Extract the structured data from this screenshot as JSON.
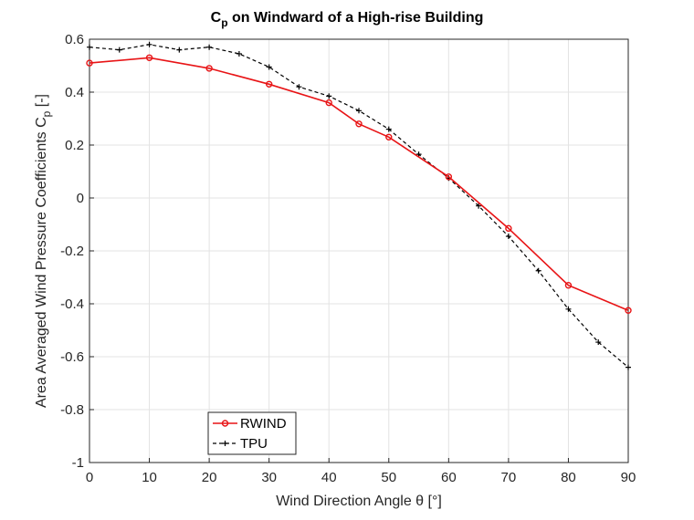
{
  "chart_data": {
    "type": "line",
    "title": "C",
    "title_sub": "p",
    "title_rest": " on Windward of a High-rise Building",
    "xlabel": "Wind Direction Angle θ [°]",
    "ylabel": "Area Averaged Wind Pressure Coefficients C",
    "ylabel_sub": "p",
    "ylabel_rest": " [-]",
    "xlim": [
      0,
      90
    ],
    "ylim": [
      -1,
      0.6
    ],
    "xticks": [
      0,
      10,
      20,
      30,
      40,
      50,
      60,
      70,
      80,
      90
    ],
    "xtick_labels": [
      "0",
      "10",
      "20",
      "30",
      "40",
      "50",
      "60",
      "70",
      "80",
      "90"
    ],
    "yticks": [
      -1,
      -0.8,
      -0.6,
      -0.4,
      -0.2,
      0,
      0.2,
      0.4,
      0.6
    ],
    "ytick_labels": [
      "-1",
      "-0.8",
      "-0.6",
      "-0.4",
      "-0.2",
      "0",
      "0.2",
      "0.4",
      "0.6"
    ],
    "grid": true,
    "legend_position": "bottom-left",
    "series": [
      {
        "name": "RWIND",
        "color": "#e81416",
        "style": "solid",
        "marker": "circle",
        "x": [
          0,
          10,
          20,
          30,
          40,
          45,
          50,
          60,
          70,
          80,
          90
        ],
        "y": [
          0.51,
          0.53,
          0.49,
          0.43,
          0.36,
          0.28,
          0.23,
          0.08,
          -0.115,
          -0.33,
          -0.425
        ]
      },
      {
        "name": "TPU",
        "color": "#000000",
        "style": "dashed",
        "marker": "plus",
        "x": [
          0,
          5,
          10,
          15,
          20,
          25,
          30,
          35,
          40,
          45,
          50,
          55,
          60,
          65,
          70,
          75,
          80,
          85,
          90
        ],
        "y": [
          0.57,
          0.56,
          0.58,
          0.56,
          0.57,
          0.545,
          0.495,
          0.42,
          0.385,
          0.33,
          0.26,
          0.165,
          0.075,
          -0.03,
          -0.145,
          -0.275,
          -0.42,
          -0.545,
          -0.64
        ]
      }
    ]
  }
}
